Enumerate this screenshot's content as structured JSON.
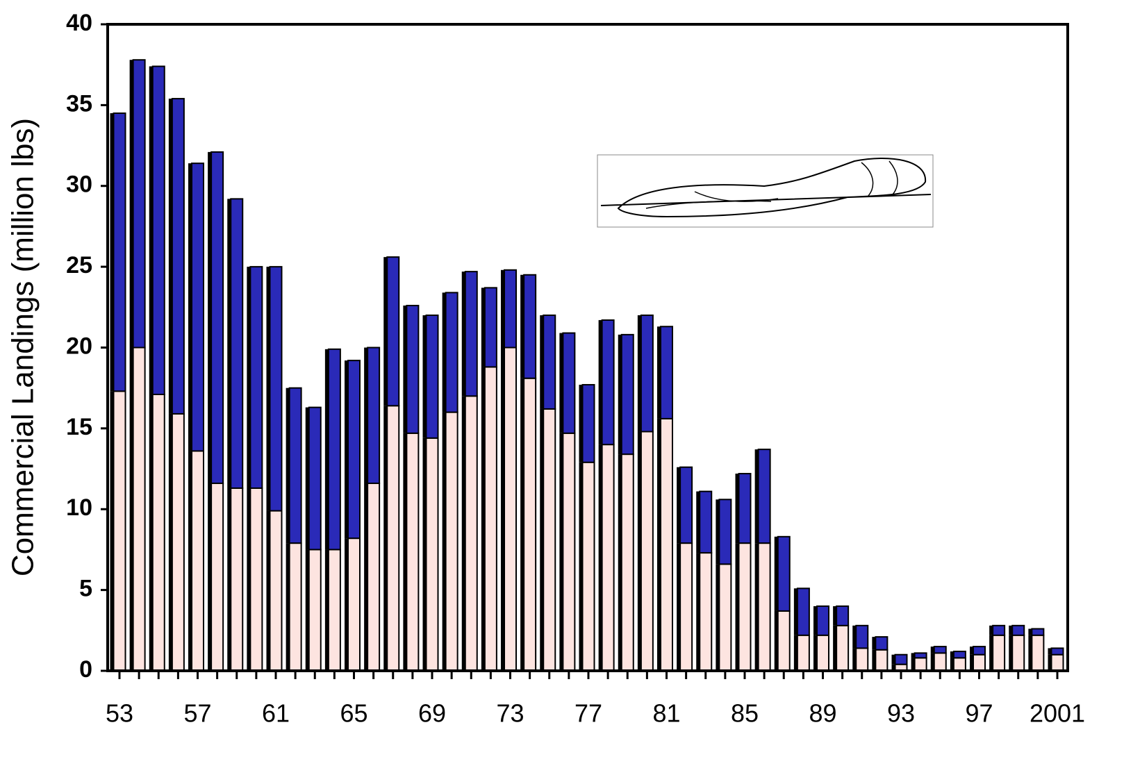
{
  "chart_data": {
    "type": "stacked_bar",
    "y_label": "Commercial Landings (million lbs)",
    "categories": [
      "53",
      null,
      null,
      null,
      "57",
      null,
      null,
      null,
      "61",
      null,
      null,
      null,
      "65",
      null,
      null,
      null,
      "69",
      null,
      null,
      null,
      "73",
      null,
      null,
      null,
      "77",
      null,
      null,
      null,
      "81",
      null,
      null,
      null,
      "85",
      null,
      null,
      null,
      "89",
      null,
      null,
      null,
      "93",
      null,
      null,
      null,
      "97",
      null,
      null,
      null,
      "2001"
    ],
    "series": [
      {
        "color": "#fde4e0",
        "values": [
          17.3,
          20,
          17.1,
          15.9,
          13.6,
          11.6,
          11.3,
          11.3,
          9.9,
          7.9,
          7.5,
          7.5,
          8.2,
          11.6,
          16.4,
          14.7,
          14.4,
          16.0,
          17.0,
          18.8,
          20.0,
          18.1,
          16.2,
          14.7,
          12.9,
          14.0,
          13.4,
          14.8,
          15.6,
          7.9,
          7.3,
          6.6,
          7.9,
          7.9,
          3.7,
          2.2,
          2.2,
          2.8,
          1.4,
          1.3,
          0.4,
          0.8,
          1.1,
          0.8,
          1.0,
          2.2,
          2.2,
          2.2,
          1.0
        ]
      },
      {
        "color": "#2a2ab8",
        "values": [
          17.2,
          17.8,
          20.3,
          19.5,
          17.8,
          20.5,
          17.9,
          13.7,
          15.1,
          9.6,
          8.8,
          12.4,
          11.0,
          8.4,
          9.2,
          7.9,
          7.6,
          7.4,
          7.7,
          4.9,
          4.8,
          6.4,
          5.8,
          6.2,
          4.8,
          7.7,
          7.4,
          7.2,
          5.7,
          4.7,
          3.8,
          4.0,
          4.3,
          5.8,
          4.6,
          2.9,
          1.8,
          1.2,
          1.4,
          0.8,
          0.6,
          0.3,
          0.4,
          0.4,
          0.5,
          0.6,
          0.6,
          0.4,
          0.4
        ]
      }
    ],
    "ylim": [
      0,
      40
    ],
    "yticks": [
      0,
      5,
      10,
      15,
      20,
      25,
      30,
      35,
      40
    ]
  }
}
